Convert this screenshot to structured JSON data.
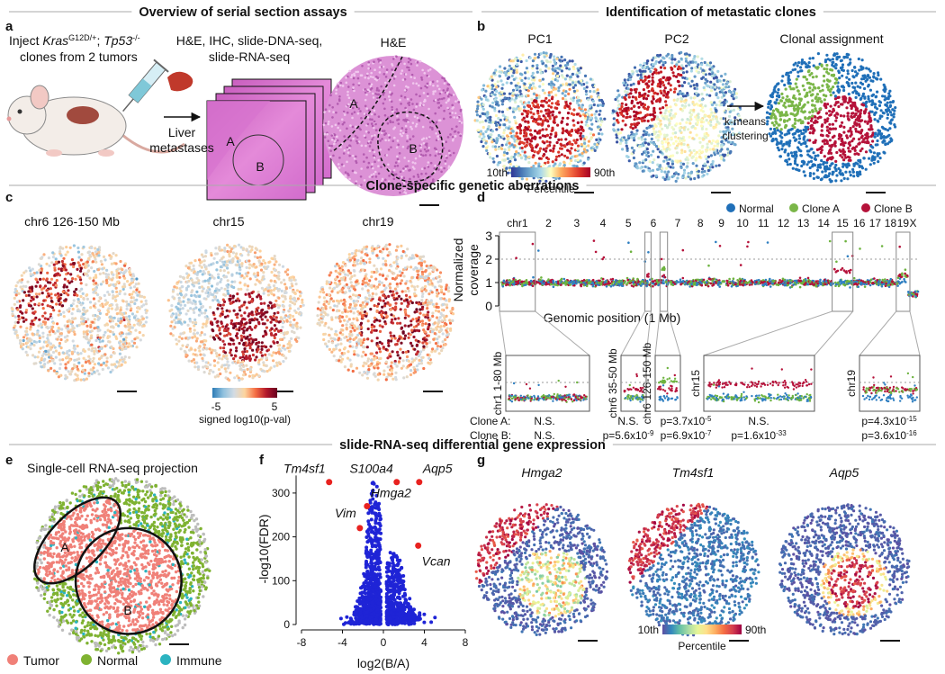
{
  "sections": [
    "Overview of serial section assays",
    "Identification of metastatic clones",
    "Clone-specific genetic aberrations",
    "slide-RNA-seq differential gene expression"
  ],
  "panel_labels": [
    "a",
    "b",
    "c",
    "d",
    "e",
    "f",
    "g"
  ],
  "panel_a": {
    "inject": [
      "Inject ",
      "Kras",
      "G12D/+",
      "; ",
      "Tp53",
      "-/-"
    ],
    "inject_line2": "clones from 2 tumors",
    "assays": [
      "H&E, IHC, slide-DNA-seq,",
      "slide-RNA-seq"
    ],
    "liver": [
      "Liver",
      "metastases"
    ],
    "stack_labels": [
      "A",
      "B"
    ],
    "he_title": "H&E",
    "he_labels": [
      "A",
      "B"
    ]
  },
  "panel_b": {
    "titles": [
      "PC1",
      "PC2",
      "Clonal assignment"
    ],
    "colorbar": {
      "min_label": "10th",
      "max_label": "90th",
      "label": "Percentile"
    },
    "arrow_label": [
      "k-means",
      "clustering"
    ],
    "legend": [
      {
        "name": "Normal",
        "color": "#1f6fb8"
      },
      {
        "name": "Clone A",
        "color": "#7ab648"
      },
      {
        "name": "Clone B",
        "color": "#b5123a"
      }
    ]
  },
  "panel_c": {
    "titles": [
      "chr6 126-150 Mb",
      "chr15",
      "chr19"
    ],
    "colorbar": {
      "min": -5,
      "max": 5,
      "label": "signed log10(p-val)"
    }
  },
  "panel_d": {
    "ylabel": [
      "Normalized",
      "coverage"
    ],
    "xlabel": "Genomic position (1 Mb)",
    "ylim": [
      0,
      3
    ],
    "yticks": [
      0,
      1,
      2,
      3
    ],
    "chromosomes": [
      "chr1",
      "2",
      "3",
      "4",
      "5",
      "6",
      "7",
      "8",
      "9",
      "10",
      "11",
      "12",
      "13",
      "14",
      "15",
      "16",
      "17",
      "18",
      "19",
      "X"
    ],
    "clone_names": [
      {
        "name": "Clone A:",
        "color": "#5aa02c"
      },
      {
        "name": "Clone B:",
        "color": "#a3123a"
      }
    ],
    "insets": [
      {
        "label": "chr1 1-80 Mb",
        "a": {
          "text": "N.S."
        },
        "b": {
          "text": "N.S."
        }
      },
      {
        "label": "chr6 35-50 Mb",
        "a": {
          "text": "N.S."
        },
        "b": {
          "text": "p=5.6x10",
          "exp": "-9"
        }
      },
      {
        "label": "chr6 126-150 Mb",
        "a": {
          "text": "p=3.7x10",
          "exp": "-5"
        },
        "b": {
          "text": "p=6.9x10",
          "exp": "-7"
        }
      },
      {
        "label": "chr15",
        "a": {
          "text": "N.S."
        },
        "b": {
          "text": "p=1.6x10",
          "exp": "-33"
        }
      },
      {
        "label": "chr19",
        "a": {
          "text": "p=4.3x10",
          "exp": "-15"
        },
        "b": {
          "text": "p=3.6x10",
          "exp": "-16"
        }
      }
    ]
  },
  "panel_e": {
    "title": "Single-cell RNA-seq projection",
    "region_labels": [
      "A",
      "B"
    ],
    "legend": [
      {
        "name": "Tumor",
        "color": "#f08078"
      },
      {
        "name": "Normal",
        "color": "#7fb231"
      },
      {
        "name": "Immune",
        "color": "#2bb3c0"
      }
    ]
  },
  "panel_f": {
    "type": "scatter",
    "xlabel": "log2(B/A)",
    "ylabel": "-log10(FDR)",
    "xlim": [
      -8,
      8
    ],
    "xticks": [
      -8,
      -4,
      0,
      4,
      8
    ],
    "ylim": [
      0,
      340
    ],
    "yticks": [
      0,
      100,
      200,
      300
    ],
    "highlight_color": "#e8221f",
    "genes": [
      {
        "name": "Tm4sf1",
        "x": -5.3,
        "y": 325
      },
      {
        "name": "S100a4",
        "x": 1.3,
        "y": 325
      },
      {
        "name": "Aqp5",
        "x": 3.5,
        "y": 325
      },
      {
        "name": "Hmga2",
        "x": -1.6,
        "y": 270
      },
      {
        "name": "Vim",
        "x": -2.3,
        "y": 220
      },
      {
        "name": "Vcan",
        "x": 3.4,
        "y": 180
      }
    ]
  },
  "panel_g": {
    "titles": [
      "Hmga2",
      "Tm4sf1",
      "Aqp5"
    ],
    "colorbar": {
      "min_label": "10th",
      "max_label": "90th",
      "label": "Percentile"
    }
  }
}
